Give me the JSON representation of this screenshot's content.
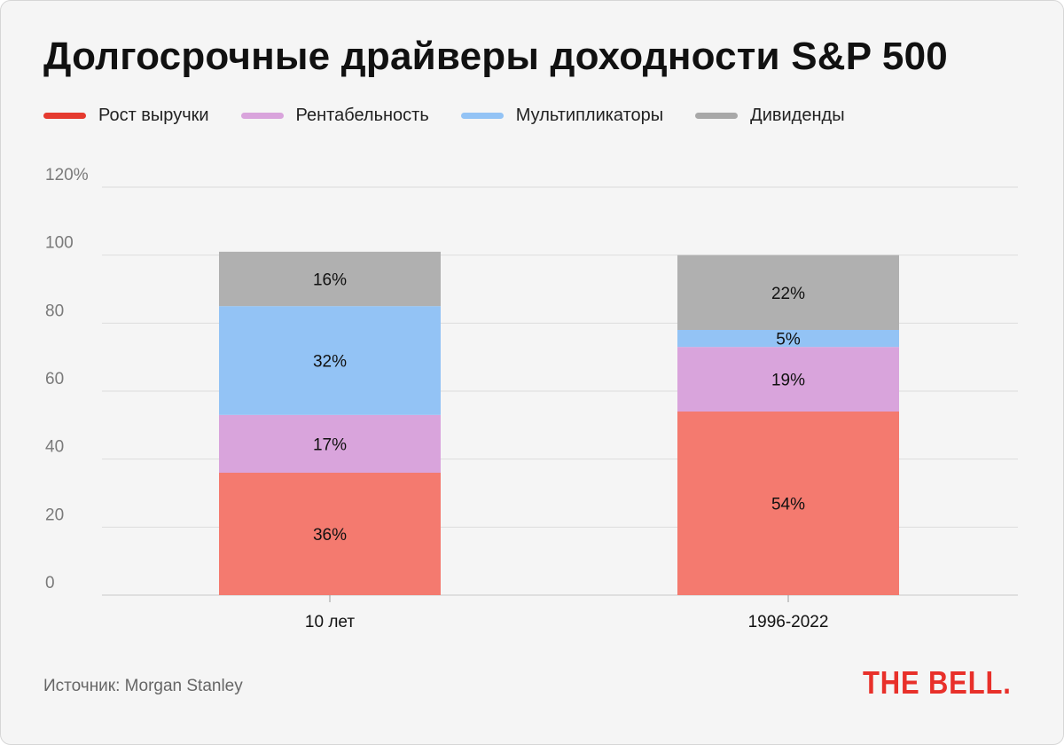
{
  "title": "Долгосрочные драйверы доходности S&P 500",
  "legend": [
    {
      "label": "Рост выручки",
      "color": "#e53a2f"
    },
    {
      "label": "Рентабельность",
      "color": "#d9a4dc"
    },
    {
      "label": "Мультипликаторы",
      "color": "#93c3f5"
    },
    {
      "label": "Дивиденды",
      "color": "#a8a8a8"
    }
  ],
  "source": "Источник: Morgan Stanley",
  "logo": "THE BELL.",
  "chart_data": {
    "type": "bar",
    "stacked": true,
    "categories": [
      "10 лет",
      "1996-2022"
    ],
    "series": [
      {
        "name": "Рост выручки",
        "color": "#f47a6f",
        "values": [
          36,
          54
        ],
        "labels": [
          "36%",
          "54%"
        ]
      },
      {
        "name": "Рентабельность",
        "color": "#d9a4dc",
        "values": [
          17,
          19
        ],
        "labels": [
          "17%",
          "19%"
        ]
      },
      {
        "name": "Мультипликаторы",
        "color": "#93c3f5",
        "values": [
          32,
          5
        ],
        "labels": [
          "32%",
          "5%"
        ]
      },
      {
        "name": "Дивиденды",
        "color": "#b0b0b0",
        "values": [
          16,
          22
        ],
        "labels": [
          "16%",
          "22%"
        ]
      }
    ],
    "yticks": [
      "0",
      "20",
      "40",
      "60",
      "80",
      "100",
      "120%"
    ],
    "ytick_values": [
      0,
      20,
      40,
      60,
      80,
      100,
      120
    ],
    "ylim": [
      0,
      120
    ],
    "grid": true
  }
}
